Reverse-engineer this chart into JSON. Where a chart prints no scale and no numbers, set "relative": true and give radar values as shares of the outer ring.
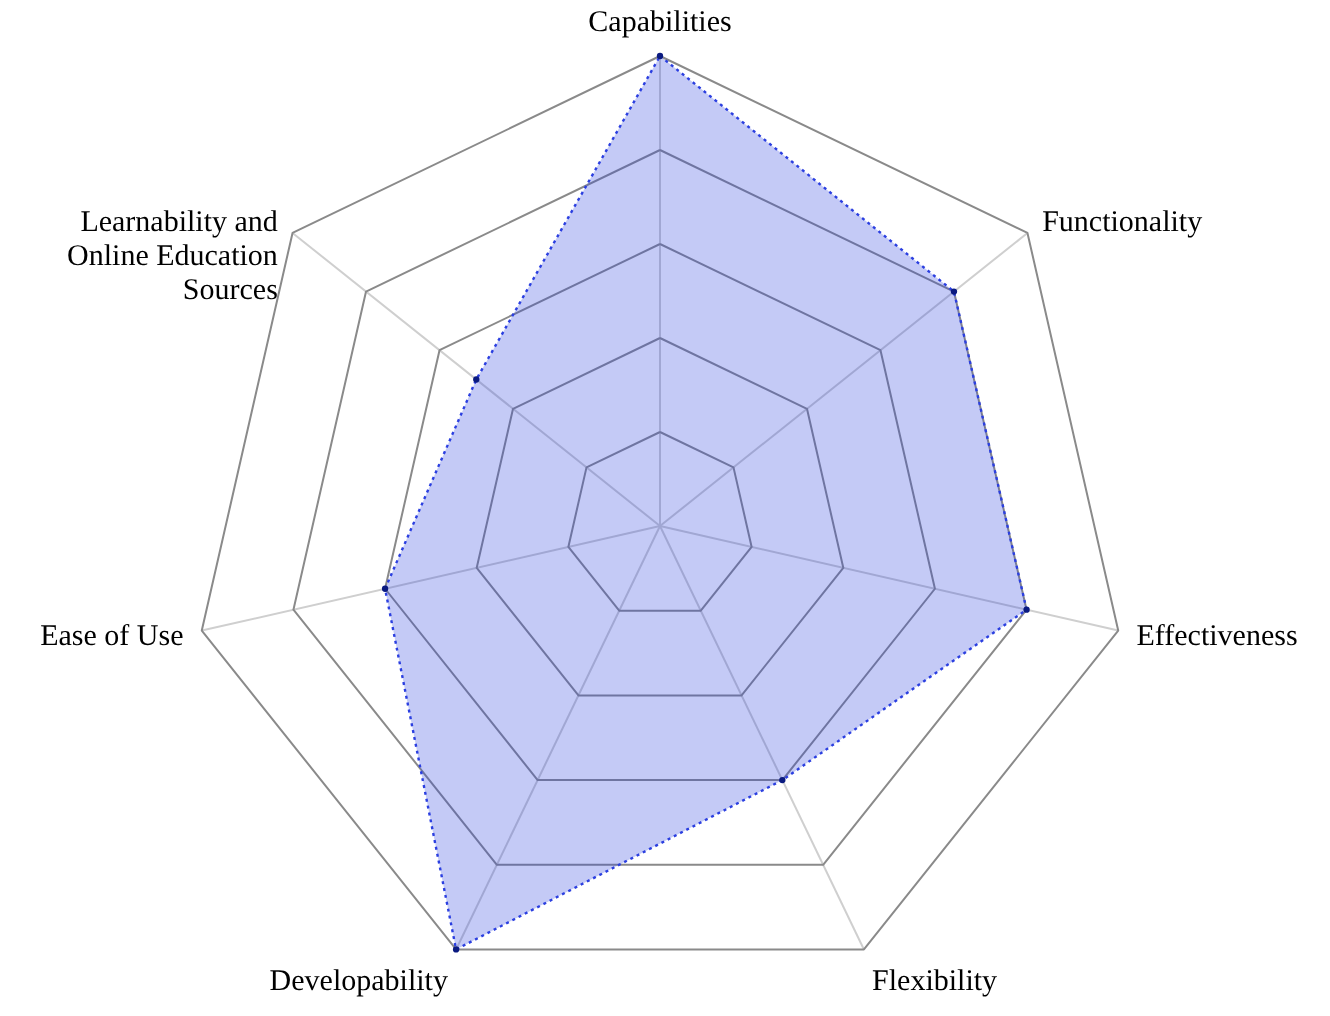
{
  "chart_data": {
    "type": "radar",
    "relative": true,
    "grid": true,
    "marker": "circle",
    "line_style": "dotted",
    "categories": [
      "Capabilities",
      "Functionality",
      "Effectiveness",
      "Flexibility",
      "Developability",
      "Ease of Use",
      "Learnability and Online Education Sources"
    ],
    "series": [
      {
        "color": "#2b3fe0",
        "values": [
          1.0,
          0.8,
          0.8,
          0.6,
          1.0,
          0.6,
          0.5
        ]
      }
    ]
  }
}
